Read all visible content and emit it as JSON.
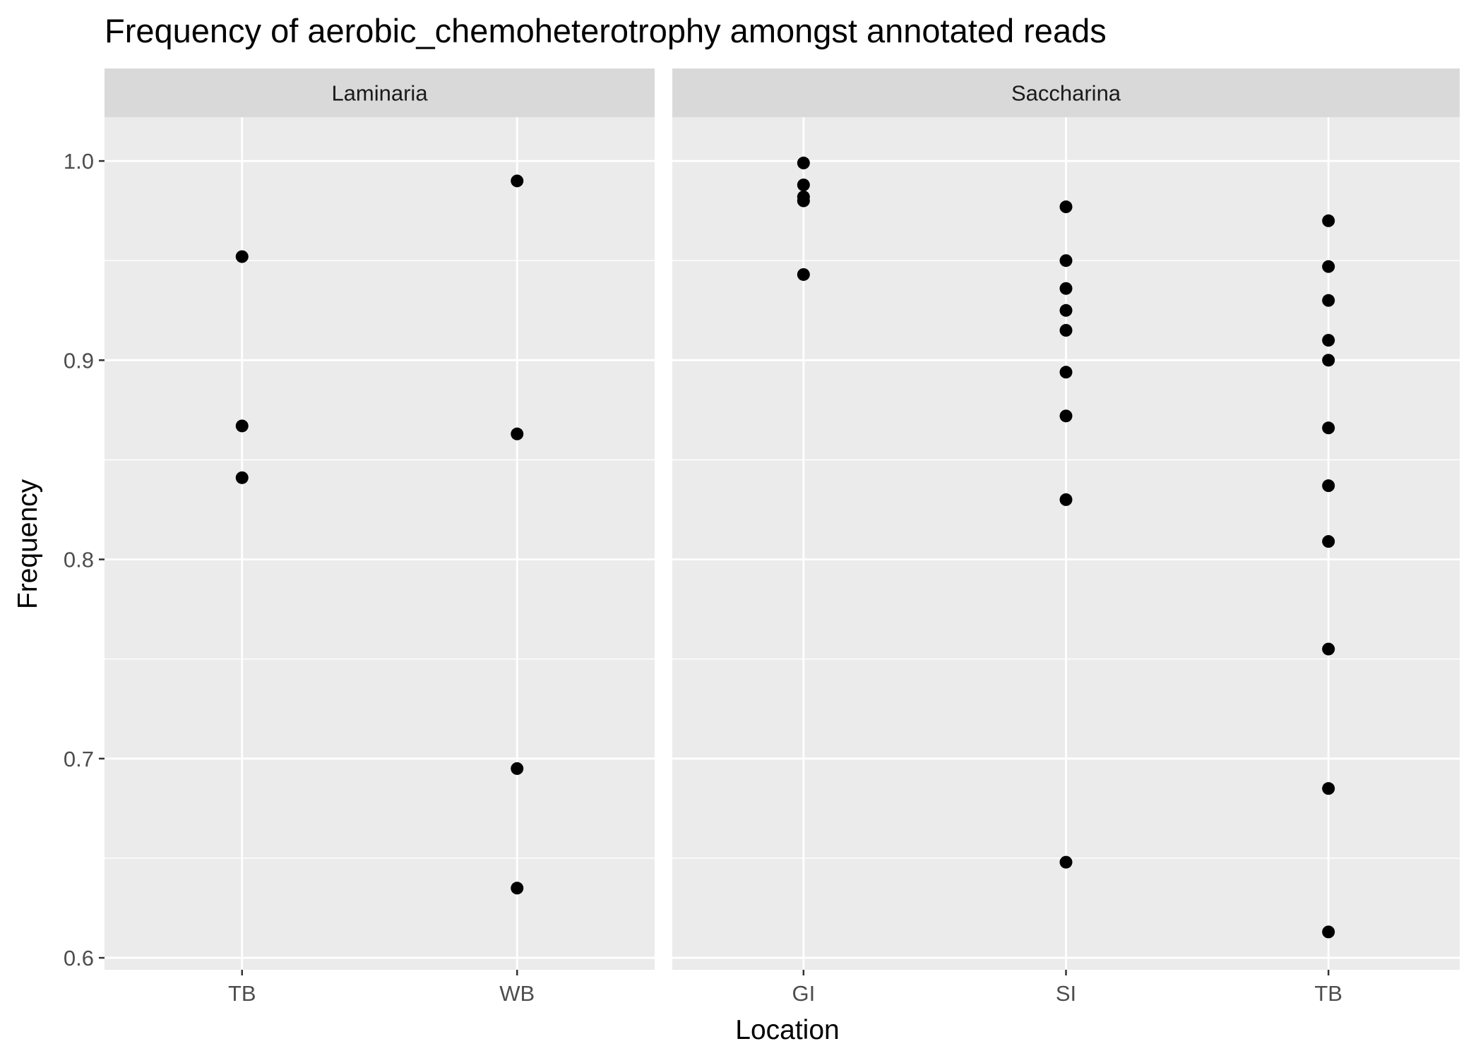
{
  "chart_data": {
    "type": "scatter",
    "title": "Frequency of aerobic_chemoheterotrophy amongst annotated reads",
    "xlabel": "Location",
    "ylabel": "Frequency",
    "ylim": [
      0.594,
      1.022
    ],
    "y_ticks": [
      "0.6",
      "0.7",
      "0.8",
      "0.9",
      "1.0"
    ],
    "grid": true,
    "facets": [
      {
        "label": "Laminaria",
        "categories": [
          "TB",
          "WB"
        ],
        "points": [
          {
            "x": "TB",
            "y": 0.952
          },
          {
            "x": "TB",
            "y": 0.867
          },
          {
            "x": "TB",
            "y": 0.841
          },
          {
            "x": "WB",
            "y": 0.99
          },
          {
            "x": "WB",
            "y": 0.863
          },
          {
            "x": "WB",
            "y": 0.695
          },
          {
            "x": "WB",
            "y": 0.635
          }
        ]
      },
      {
        "label": "Saccharina",
        "categories": [
          "GI",
          "SI",
          "TB"
        ],
        "points": [
          {
            "x": "GI",
            "y": 0.999
          },
          {
            "x": "GI",
            "y": 0.988
          },
          {
            "x": "GI",
            "y": 0.982
          },
          {
            "x": "GI",
            "y": 0.98
          },
          {
            "x": "GI",
            "y": 0.943
          },
          {
            "x": "SI",
            "y": 0.977
          },
          {
            "x": "SI",
            "y": 0.95
          },
          {
            "x": "SI",
            "y": 0.936
          },
          {
            "x": "SI",
            "y": 0.925
          },
          {
            "x": "SI",
            "y": 0.915
          },
          {
            "x": "SI",
            "y": 0.894
          },
          {
            "x": "SI",
            "y": 0.872
          },
          {
            "x": "SI",
            "y": 0.83
          },
          {
            "x": "SI",
            "y": 0.648
          },
          {
            "x": "TB",
            "y": 0.97
          },
          {
            "x": "TB",
            "y": 0.947
          },
          {
            "x": "TB",
            "y": 0.93
          },
          {
            "x": "TB",
            "y": 0.91
          },
          {
            "x": "TB",
            "y": 0.9
          },
          {
            "x": "TB",
            "y": 0.866
          },
          {
            "x": "TB",
            "y": 0.837
          },
          {
            "x": "TB",
            "y": 0.809
          },
          {
            "x": "TB",
            "y": 0.755
          },
          {
            "x": "TB",
            "y": 0.685
          },
          {
            "x": "TB",
            "y": 0.613
          }
        ]
      }
    ],
    "colors": {
      "panel_background": "#ebebeb",
      "strip_background": "#d9d9d9",
      "grid": "#ffffff",
      "point": "#000000"
    }
  }
}
